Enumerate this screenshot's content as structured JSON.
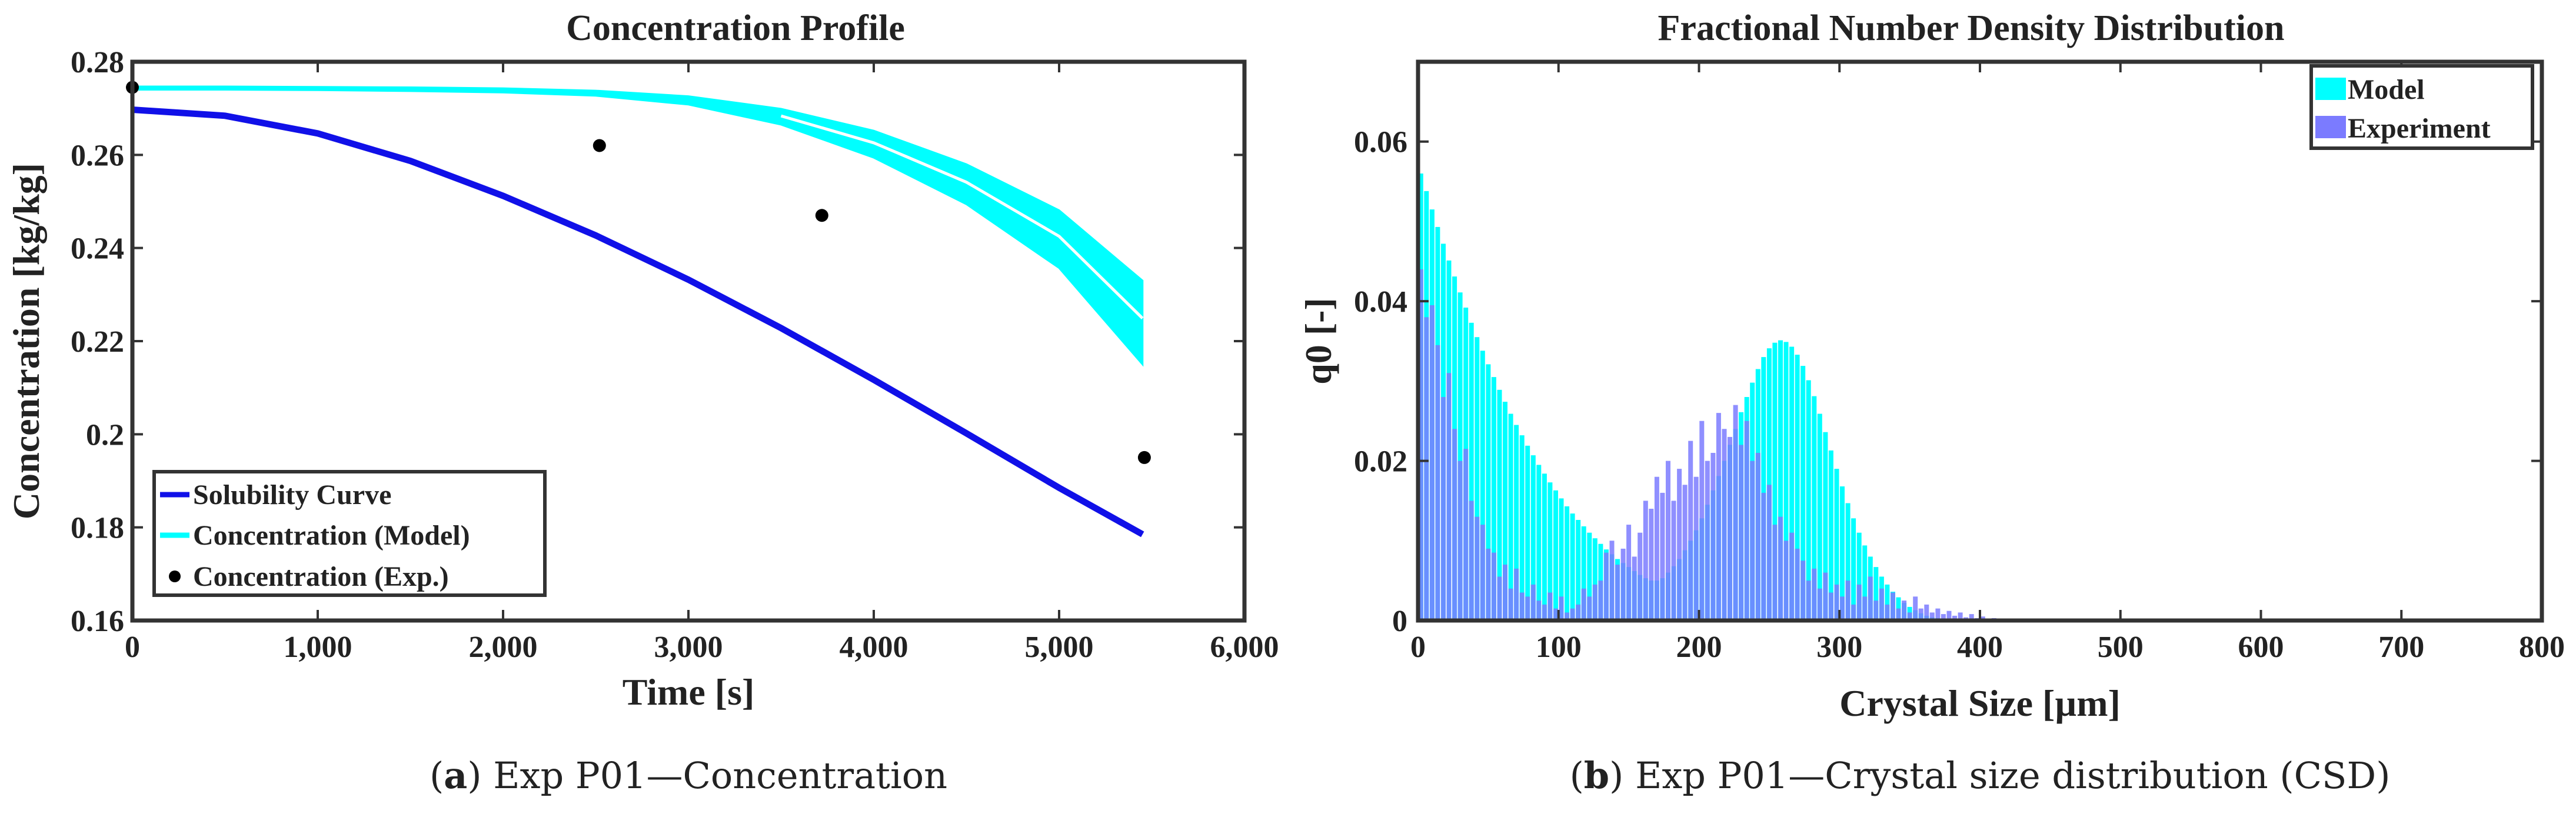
{
  "chart_data": [
    {
      "type": "line",
      "title": "Concentration Profile",
      "xlabel": "Time [s]",
      "ylabel": "Concentration [kg/kg]",
      "xlim": [
        0,
        6000
      ],
      "ylim": [
        0.16,
        0.28
      ],
      "xticks": [
        0,
        1000,
        2000,
        3000,
        4000,
        5000,
        6000
      ],
      "xtick_labels": [
        "0",
        "1,000",
        "2,000",
        "3,000",
        "4,000",
        "5,000",
        "6,000"
      ],
      "yticks": [
        0.16,
        0.18,
        0.2,
        0.22,
        0.24,
        0.26,
        0.28
      ],
      "ytick_labels": [
        "0.16",
        "0.18",
        "0.2",
        "0.22",
        "0.24",
        "0.26",
        "0.28"
      ],
      "legend_position": "bottom-left",
      "colors": {
        "solubility": "#1010e8",
        "model": "#00ffff",
        "experiment": "#000000"
      },
      "series": [
        {
          "name": "Solubility Curve",
          "kind": "line",
          "x": [
            0,
            500,
            1000,
            1500,
            2000,
            2500,
            3000,
            3500,
            4000,
            4500,
            5000,
            5450
          ],
          "y": [
            0.2697,
            0.2684,
            0.2646,
            0.2587,
            0.2512,
            0.2427,
            0.2332,
            0.2228,
            0.2117,
            0.2002,
            0.1885,
            0.1785
          ]
        },
        {
          "name": "Concentration (Model)",
          "kind": "band",
          "x": [
            0,
            500,
            1000,
            1500,
            2000,
            2500,
            3000,
            3500,
            4000,
            4500,
            5000,
            5450
          ],
          "upper": [
            0.2747,
            0.2747,
            0.2746,
            0.2745,
            0.2743,
            0.2738,
            0.2726,
            0.2699,
            0.2652,
            0.258,
            0.2481,
            0.233
          ],
          "lower": [
            0.274,
            0.274,
            0.2739,
            0.2737,
            0.2734,
            0.2727,
            0.2708,
            0.2665,
            0.2594,
            0.2494,
            0.2357,
            0.215
          ]
        },
        {
          "name": "Concentration (Exp.)",
          "kind": "scatter",
          "x": [
            0,
            2520,
            3720,
            5460
          ],
          "y": [
            0.2745,
            0.262,
            0.247,
            0.195
          ]
        }
      ]
    },
    {
      "type": "bar",
      "title": "Fractional Number Density Distribution",
      "xlabel": "Crystal Size [µm]",
      "ylabel": "q0 [-]",
      "xlim": [
        0,
        800
      ],
      "ylim": [
        0,
        0.07
      ],
      "xticks": [
        0,
        100,
        200,
        300,
        400,
        500,
        600,
        700,
        800
      ],
      "yticks": [
        0,
        0.02,
        0.04,
        0.06
      ],
      "ytick_labels": [
        "0",
        "0.02",
        "0.04",
        "0.06"
      ],
      "bin_width": 4,
      "legend_position": "top-right",
      "colors": {
        "model": "#00ffff",
        "experiment": "#7b7bff"
      },
      "series": [
        {
          "name": "Model",
          "bins_start": 2,
          "values": [
            0.056,
            0.0538,
            0.0515,
            0.0493,
            0.0472,
            0.0451,
            0.0431,
            0.0411,
            0.0392,
            0.0373,
            0.0355,
            0.0338,
            0.0321,
            0.0305,
            0.0289,
            0.0274,
            0.0259,
            0.0245,
            0.0232,
            0.0219,
            0.0207,
            0.0195,
            0.0184,
            0.0173,
            0.0163,
            0.0153,
            0.0143,
            0.0134,
            0.0126,
            0.0118,
            0.011,
            0.0103,
            0.0096,
            0.0089,
            0.0083,
            0.0077,
            0.0072,
            0.0067,
            0.0062,
            0.0057,
            0.0053,
            0.005,
            0.005,
            0.0053,
            0.006,
            0.0068,
            0.0077,
            0.0088,
            0.01,
            0.0113,
            0.0128,
            0.0145,
            0.0163,
            0.0181,
            0.02,
            0.022,
            0.024,
            0.0261,
            0.028,
            0.0298,
            0.0315,
            0.033,
            0.0341,
            0.0348,
            0.0351,
            0.0349,
            0.0343,
            0.0333,
            0.0319,
            0.0301,
            0.0281,
            0.0259,
            0.0236,
            0.0213,
            0.019,
            0.0168,
            0.0147,
            0.0128,
            0.011,
            0.0094,
            0.008,
            0.0067,
            0.0055,
            0.0045,
            0.0036,
            0.0029,
            0.0022,
            0.0017,
            0.0013,
            0.0009,
            0.0006,
            0.0004,
            0.0003,
            0.0002,
            0.0001,
            0.0001
          ]
        },
        {
          "name": "Experiment",
          "bins_start": 2,
          "values": [
            0.044,
            0.038,
            0.0395,
            0.0345,
            0.028,
            0.031,
            0.024,
            0.02,
            0.0215,
            0.015,
            0.013,
            0.012,
            0.009,
            0.0085,
            0.0055,
            0.007,
            0.004,
            0.0065,
            0.0035,
            0.003,
            0.0045,
            0.0025,
            0.002,
            0.0035,
            0.0015,
            0.003,
            0.001,
            0.0015,
            0.002,
            0.004,
            0.003,
            0.0045,
            0.005,
            0.0085,
            0.01,
            0.007,
            0.009,
            0.012,
            0.008,
            0.011,
            0.015,
            0.014,
            0.018,
            0.016,
            0.02,
            0.015,
            0.019,
            0.017,
            0.0225,
            0.018,
            0.025,
            0.02,
            0.021,
            0.026,
            0.024,
            0.023,
            0.027,
            0.022,
            0.025,
            0.02,
            0.021,
            0.016,
            0.017,
            0.012,
            0.013,
            0.01,
            0.011,
            0.009,
            0.0075,
            0.005,
            0.0065,
            0.004,
            0.006,
            0.0035,
            0.0045,
            0.003,
            0.005,
            0.002,
            0.0045,
            0.003,
            0.0055,
            0.0025,
            0.004,
            0.002,
            0.0035,
            0.0015,
            0.0025,
            0.001,
            0.003,
            0.0015,
            0.002,
            0.001,
            0.0015,
            0.0008,
            0.0012,
            0.0006,
            0.001,
            0.0004,
            0.0008,
            0.0003,
            0.0005,
            0.0002,
            0.0003,
            0.0002,
            0.0002,
            0.0001,
            0.0002,
            0.0001,
            0.0001,
            0.0001,
            0.0001,
            0.0001,
            0.0001,
            0.0001,
            0.0001,
            0.0001,
            0.0001,
            0.0001,
            0.0001
          ]
        }
      ]
    }
  ],
  "captions": {
    "a": {
      "label": "a",
      "text": "Exp P01—Concentration"
    },
    "b": {
      "label": "b",
      "text": "Exp P01—Crystal size distribution (CSD)"
    }
  }
}
